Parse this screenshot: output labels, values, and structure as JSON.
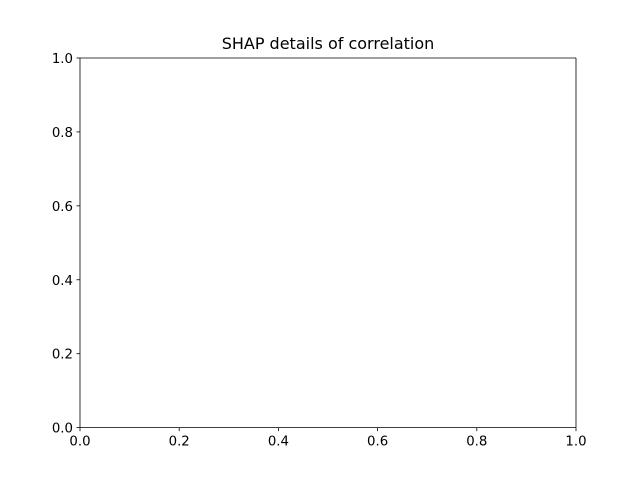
{
  "chart_data": {
    "type": "scatter",
    "title": "SHAP details of correlation",
    "xlabel": "",
    "ylabel": "",
    "xlim": [
      0,
      1
    ],
    "ylim": [
      0,
      1
    ],
    "x_ticks": [
      "0.0",
      "0.2",
      "0.4",
      "0.6",
      "0.8",
      "1.0"
    ],
    "y_ticks": [
      "0.0",
      "0.2",
      "0.4",
      "0.6",
      "0.8",
      "1.0"
    ],
    "series": [],
    "grid": false,
    "legend": "none"
  }
}
